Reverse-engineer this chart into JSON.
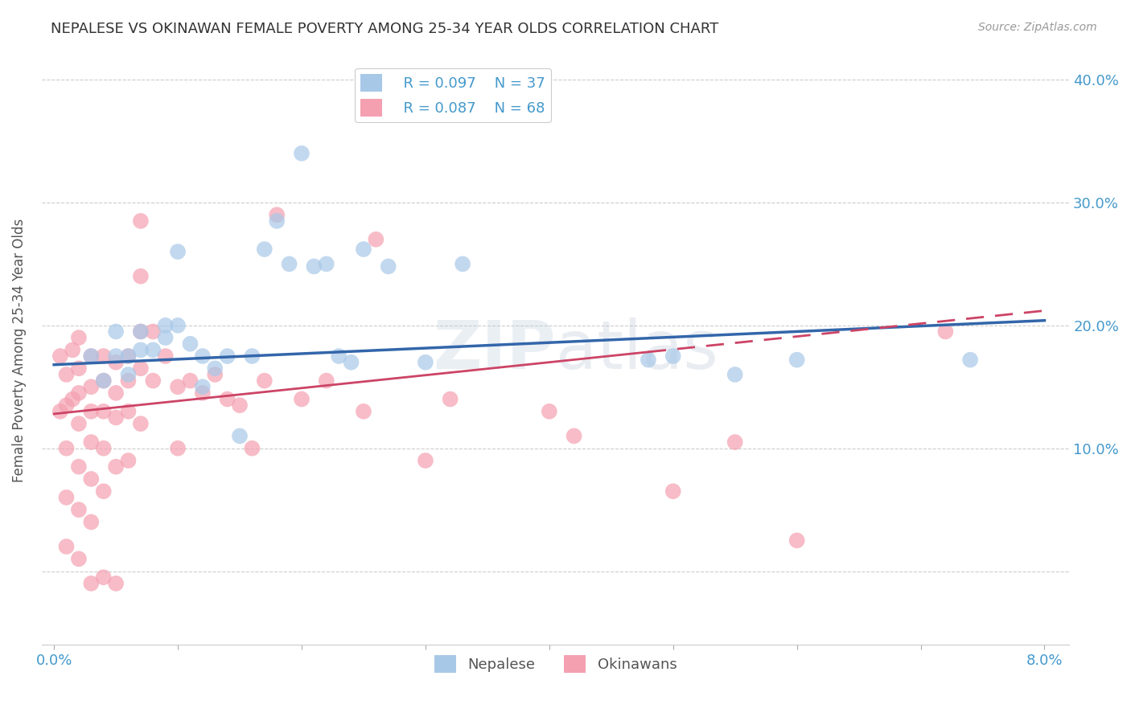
{
  "title": "NEPALESE VS OKINAWAN FEMALE POVERTY AMONG 25-34 YEAR OLDS CORRELATION CHART",
  "source": "Source: ZipAtlas.com",
  "ylabel": "Female Poverty Among 25-34 Year Olds",
  "xlim": [
    -0.001,
    0.082
  ],
  "ylim": [
    -0.06,
    0.42
  ],
  "xticks": [
    0.0,
    0.01,
    0.02,
    0.03,
    0.04,
    0.05,
    0.06,
    0.07,
    0.08
  ],
  "xticklabels": [
    "0.0%",
    "",
    "",
    "",
    "",
    "",
    "",
    "",
    "8.0%"
  ],
  "yticks_right": [
    0.0,
    0.1,
    0.2,
    0.3,
    0.4
  ],
  "yticklabels_right": [
    "",
    "10.0%",
    "20.0%",
    "30.0%",
    "40.0%"
  ],
  "nepalese_R": 0.097,
  "nepalese_N": 37,
  "okinawan_R": 0.087,
  "okinawan_N": 68,
  "nepalese_color": "#a8c8e8",
  "okinawan_color": "#f4a0b0",
  "nepalese_line_color": "#3366aa",
  "okinawan_line_color": "#cc4466",
  "background_color": "#ffffff",
  "grid_color": "#cccccc",
  "title_color": "#333333",
  "axis_label_color": "#4499cc",
  "nepalese_x": [
    0.003,
    0.004,
    0.005,
    0.005,
    0.006,
    0.006,
    0.007,
    0.007,
    0.008,
    0.009,
    0.009,
    0.01,
    0.01,
    0.011,
    0.012,
    0.012,
    0.013,
    0.014,
    0.015,
    0.016,
    0.017,
    0.018,
    0.019,
    0.02,
    0.021,
    0.022,
    0.023,
    0.024,
    0.025,
    0.027,
    0.03,
    0.033,
    0.048,
    0.05,
    0.055,
    0.06,
    0.074
  ],
  "nepalese_y": [
    0.175,
    0.155,
    0.195,
    0.175,
    0.175,
    0.16,
    0.195,
    0.18,
    0.18,
    0.2,
    0.19,
    0.26,
    0.2,
    0.185,
    0.175,
    0.15,
    0.165,
    0.175,
    0.11,
    0.175,
    0.262,
    0.285,
    0.25,
    0.34,
    0.248,
    0.25,
    0.175,
    0.17,
    0.262,
    0.248,
    0.17,
    0.25,
    0.172,
    0.175,
    0.16,
    0.172,
    0.172
  ],
  "okinawan_x": [
    0.0005,
    0.0005,
    0.001,
    0.001,
    0.001,
    0.001,
    0.001,
    0.0015,
    0.0015,
    0.002,
    0.002,
    0.002,
    0.002,
    0.002,
    0.002,
    0.002,
    0.003,
    0.003,
    0.003,
    0.003,
    0.003,
    0.003,
    0.003,
    0.004,
    0.004,
    0.004,
    0.004,
    0.004,
    0.004,
    0.005,
    0.005,
    0.005,
    0.005,
    0.005,
    0.006,
    0.006,
    0.006,
    0.006,
    0.007,
    0.007,
    0.007,
    0.007,
    0.007,
    0.008,
    0.008,
    0.009,
    0.01,
    0.01,
    0.011,
    0.012,
    0.013,
    0.014,
    0.015,
    0.016,
    0.017,
    0.018,
    0.02,
    0.022,
    0.025,
    0.026,
    0.03,
    0.032,
    0.04,
    0.042,
    0.05,
    0.055,
    0.06,
    0.072
  ],
  "okinawan_y": [
    0.175,
    0.13,
    0.16,
    0.135,
    0.1,
    0.06,
    0.02,
    0.18,
    0.14,
    0.19,
    0.165,
    0.145,
    0.12,
    0.085,
    0.05,
    0.01,
    0.175,
    0.15,
    0.13,
    0.105,
    0.075,
    0.04,
    -0.01,
    0.175,
    0.155,
    0.13,
    0.1,
    0.065,
    -0.005,
    0.17,
    0.145,
    0.125,
    0.085,
    -0.01,
    0.175,
    0.155,
    0.13,
    0.09,
    0.285,
    0.24,
    0.195,
    0.165,
    0.12,
    0.195,
    0.155,
    0.175,
    0.15,
    0.1,
    0.155,
    0.145,
    0.16,
    0.14,
    0.135,
    0.1,
    0.155,
    0.29,
    0.14,
    0.155,
    0.13,
    0.27,
    0.09,
    0.14,
    0.13,
    0.11,
    0.065,
    0.105,
    0.025,
    0.195
  ],
  "nepalese_line_intercept": 0.168,
  "nepalese_line_slope": 0.45,
  "okinawan_line_intercept": 0.128,
  "okinawan_line_slope": 1.05
}
